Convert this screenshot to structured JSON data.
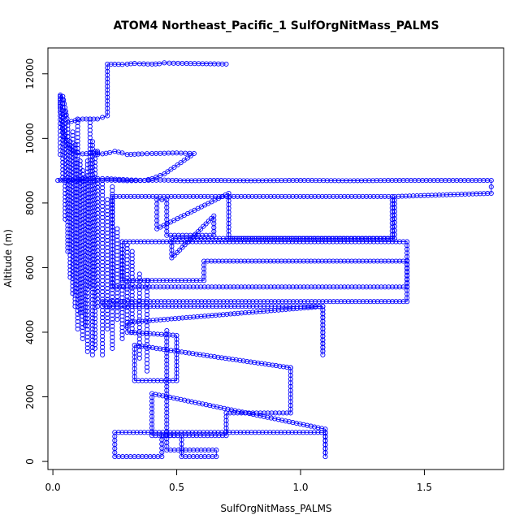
{
  "chart_data": {
    "type": "scatter",
    "title": "ATOM4 Northeast_Pacific_1 SulfOrgNitMass_PALMS",
    "xlabel": "SulfOrgNitMass_PALMS",
    "ylabel": "Altitude (m)",
    "xlim": [
      -0.02,
      1.82
    ],
    "ylim": [
      -250,
      12800
    ],
    "x_ticks": [
      0,
      0.5,
      1,
      1.5
    ],
    "x_tick_labels": [
      "0.0",
      "0.5",
      "1.0",
      "1.5"
    ],
    "y_ticks": [
      0,
      2000,
      4000,
      6000,
      8000,
      10000,
      12000
    ],
    "y_tick_labels": [
      "0",
      "2000",
      "4000",
      "6000",
      "8000",
      "10000",
      "12000"
    ],
    "grid": false,
    "legend": "none",
    "color": "#0000ff",
    "series": [
      {
        "x": [
          0.7,
          0.62,
          0.54,
          0.47,
          0.45,
          0.43,
          0.4,
          0.35,
          0.33,
          0.3,
          0.28,
          0.22,
          0.22,
          0.22,
          0.18,
          0.12,
          0.06,
          0.04,
          0.03,
          0.03,
          0.04,
          0.06,
          0.08,
          0.1,
          0.12,
          0.15,
          0.18,
          0.18,
          0.18,
          0.2,
          0.23,
          0.25,
          0.28,
          0.3,
          0.33,
          0.36,
          0.4,
          0.45,
          0.5,
          0.57,
          0.45,
          0.4,
          0.37,
          0.3,
          0.22,
          0.18,
          0.12,
          0.08,
          0.05,
          0.03,
          0.02,
          0.04,
          0.08,
          0.12,
          0.18,
          0.22,
          0.3,
          0.37,
          0.45,
          0.53,
          0.65,
          0.8,
          1.0,
          1.2,
          1.4,
          1.6,
          1.77,
          1.77,
          1.77,
          1.38,
          1.38,
          1.38,
          0.71,
          0.71,
          0.71,
          0.42,
          0.42,
          0.46,
          0.46,
          0.65,
          0.65,
          0.48,
          0.48,
          1.37,
          1.37,
          0.24,
          0.24,
          1.43,
          1.43,
          0.61,
          0.61,
          0.28,
          0.28,
          1.43,
          1.43,
          0.2,
          0.2,
          1.09,
          1.09,
          1.09,
          0.3,
          0.3,
          0.5,
          0.5,
          0.33,
          0.33,
          0.96,
          0.96,
          0.96,
          0.7,
          0.7,
          0.4,
          0.4,
          1.1,
          1.1,
          1.1,
          0.25,
          0.25,
          0.44,
          0.44,
          0.52,
          0.52,
          0.66,
          0.66,
          0.46,
          0.46
        ],
        "y": [
          12300,
          12310,
          12320,
          12330,
          12340,
          12310,
          12300,
          12310,
          12320,
          12300,
          12290,
          12300,
          11500,
          10700,
          10600,
          10600,
          10500,
          11300,
          11340,
          11000,
          10200,
          9800,
          9600,
          9550,
          9520,
          9530,
          9550,
          9600,
          9500,
          9520,
          9560,
          9600,
          9550,
          9500,
          9510,
          9520,
          9530,
          9540,
          9550,
          9530,
          8900,
          8750,
          8700,
          8720,
          8750,
          8760,
          8740,
          8720,
          8700,
          8710,
          8700,
          8710,
          8700,
          8690,
          8700,
          8710,
          8690,
          8700,
          8710,
          8690,
          8700,
          8690,
          8700,
          8690,
          8700,
          8700,
          8700,
          8500,
          8300,
          8200,
          7400,
          6900,
          6900,
          7600,
          8300,
          7200,
          8100,
          8100,
          7000,
          7000,
          7600,
          6300,
          6900,
          6900,
          8200,
          8200,
          5400,
          5400,
          6200,
          6200,
          5600,
          5600,
          6800,
          6800,
          4950,
          4950,
          4800,
          4800,
          3300,
          4800,
          4300,
          4000,
          3900,
          2500,
          2500,
          3600,
          2900,
          2900,
          1500,
          1500,
          800,
          800,
          2100,
          1000,
          150,
          900,
          900,
          150,
          150,
          800,
          800,
          150,
          150,
          350,
          350,
          4050
        ],
        "connected": true
      },
      {
        "x": [
          0.03,
          0.03,
          0.04,
          0.04,
          0.05,
          0.05,
          0.06,
          0.06,
          0.07,
          0.07,
          0.08,
          0.08,
          0.09,
          0.09,
          0.1,
          0.1,
          0.11,
          0.11,
          0.12,
          0.12,
          0.13,
          0.13,
          0.14,
          0.14,
          0.15,
          0.15,
          0.16,
          0.16,
          0.17,
          0.17,
          0.18,
          0.18,
          0.2,
          0.2,
          0.22,
          0.22,
          0.24,
          0.24,
          0.26,
          0.26,
          0.28,
          0.28,
          0.3,
          0.3,
          0.32,
          0.32,
          0.35,
          0.35,
          0.38,
          0.38
        ],
        "y": [
          11300,
          9500,
          11200,
          8800,
          10800,
          7500,
          10400,
          6500,
          9900,
          5700,
          10200,
          5200,
          9800,
          4800,
          10600,
          4100,
          9300,
          4600,
          9000,
          3800,
          8800,
          4200,
          9300,
          3400,
          10600,
          5400,
          9900,
          3300,
          9600,
          3500,
          8600,
          4800,
          8700,
          3300,
          8100,
          4100,
          8500,
          3500,
          7200,
          4400,
          6800,
          3800,
          6700,
          4200,
          6500,
          4000,
          5800,
          3200,
          5600,
          2800
        ],
        "connected": false
      }
    ]
  }
}
